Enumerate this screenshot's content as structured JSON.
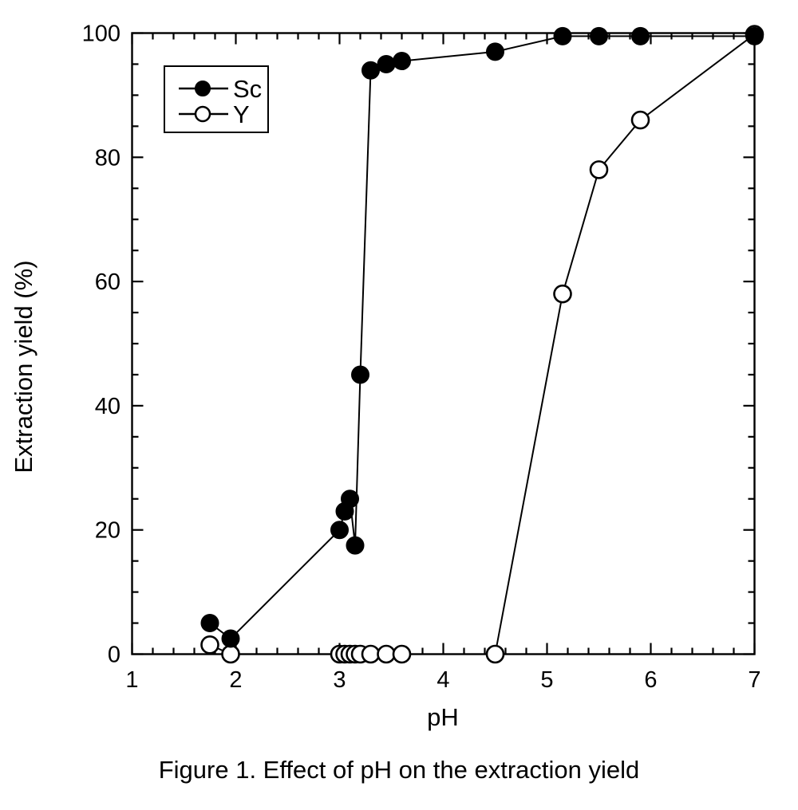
{
  "figure": {
    "caption": "Figure 1. Effect of pH on the extraction yield"
  },
  "chart_data": {
    "type": "line",
    "title": "",
    "xlabel": "pH",
    "ylabel": "Extraction yield (%)",
    "xlim": [
      1,
      7
    ],
    "ylim": [
      0,
      100
    ],
    "x_major_ticks": [
      1,
      2,
      3,
      4,
      5,
      6,
      7
    ],
    "x_minor_tick_step": 0.2,
    "y_major_ticks": [
      0,
      20,
      40,
      60,
      80,
      100
    ],
    "y_minor_tick_step": 5,
    "grid": false,
    "frame": "full-box-with-inside-ticks",
    "legend_position": "upper-left-inside",
    "colors": {
      "foreground": "#000000",
      "background": "#ffffff"
    },
    "series": [
      {
        "name": "Sc",
        "marker": "filled-circle",
        "points": [
          [
            1.75,
            5
          ],
          [
            1.95,
            2.5
          ],
          [
            3.0,
            20
          ],
          [
            3.05,
            23
          ],
          [
            3.1,
            25
          ],
          [
            3.15,
            17.5
          ],
          [
            3.2,
            45
          ],
          [
            3.3,
            94
          ],
          [
            3.45,
            95
          ],
          [
            3.6,
            95.5
          ],
          [
            4.5,
            97
          ],
          [
            5.15,
            99.5
          ],
          [
            5.5,
            99.5
          ],
          [
            5.9,
            99.5
          ],
          [
            7.0,
            99.5
          ]
        ]
      },
      {
        "name": "Y",
        "marker": "open-circle",
        "points": [
          [
            1.75,
            1.5
          ],
          [
            1.95,
            0
          ],
          [
            3.0,
            0
          ],
          [
            3.05,
            0
          ],
          [
            3.1,
            0
          ],
          [
            3.15,
            0
          ],
          [
            3.2,
            0
          ],
          [
            3.3,
            0
          ],
          [
            3.45,
            0
          ],
          [
            3.6,
            0
          ],
          [
            4.5,
            0
          ],
          [
            5.15,
            58
          ],
          [
            5.5,
            78
          ],
          [
            5.9,
            86
          ],
          [
            7.0,
            99.8
          ]
        ]
      }
    ]
  }
}
